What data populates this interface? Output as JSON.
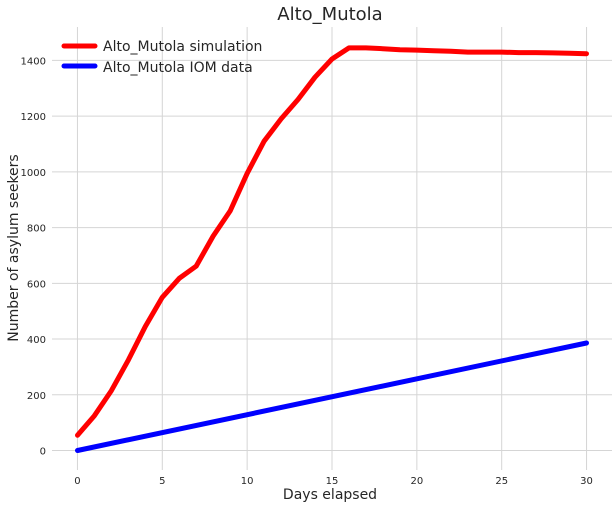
{
  "chart_data": {
    "type": "line",
    "title": "Alto_Mutola",
    "xlabel": "Days elapsed",
    "ylabel": "Number of asylum seekers",
    "xlim": [
      -1.5,
      31.5
    ],
    "ylim": [
      -70,
      1520
    ],
    "xticks": [
      0,
      5,
      10,
      15,
      20,
      25,
      30
    ],
    "yticks": [
      0,
      200,
      400,
      600,
      800,
      1000,
      1200,
      1400
    ],
    "grid": true,
    "legend": "top-left",
    "series": [
      {
        "name": "Alto_Mutola simulation",
        "color": "#ff0000",
        "x": [
          0,
          1,
          2,
          3,
          4,
          5,
          6,
          7,
          8,
          9,
          10,
          11,
          12,
          13,
          14,
          15,
          16,
          17,
          18,
          19,
          20,
          21,
          22,
          23,
          24,
          25,
          26,
          27,
          28,
          29,
          30
        ],
        "y": [
          55,
          125,
          215,
          325,
          445,
          550,
          618,
          662,
          770,
          860,
          995,
          1110,
          1190,
          1260,
          1340,
          1405,
          1445,
          1445,
          1442,
          1438,
          1437,
          1435,
          1433,
          1430,
          1430,
          1430,
          1428,
          1428,
          1427,
          1426,
          1424
        ]
      },
      {
        "name": "Alto_Mutola IOM data",
        "color": "#0000ff",
        "x": [
          0,
          30
        ],
        "y": [
          0,
          386
        ]
      }
    ]
  }
}
